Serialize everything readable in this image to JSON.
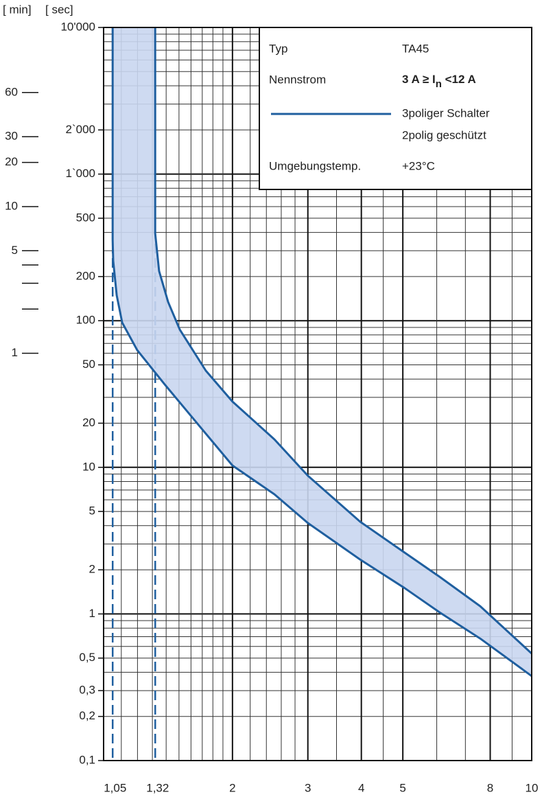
{
  "chart_data": {
    "type": "scatter",
    "xlog": true,
    "ylog": true,
    "y_axis_label": "[ sec]",
    "y2_axis_label": "[ min]",
    "xlim": [
      1,
      10
    ],
    "xticks": [
      {
        "value": 1.05,
        "label": "1,05"
      },
      {
        "value": 1.32,
        "label": "1,32"
      },
      2,
      3,
      4,
      5,
      8,
      10
    ],
    "x_minor_grid": [
      1.1,
      1.2,
      1.3,
      1.4,
      1.5,
      1.6,
      1.7,
      1.8,
      1.9,
      2.2,
      2.4,
      2.6,
      2.8,
      3.5,
      4.5,
      6,
      7,
      9
    ],
    "ylim": [
      0.1,
      10000
    ],
    "yticks": [
      {
        "value": 10000,
        "label": "10'000"
      },
      {
        "value": 2000,
        "label": "2`000"
      },
      {
        "value": 1000,
        "label": "1`000"
      },
      500,
      200,
      100,
      50,
      20,
      10,
      5,
      2,
      1,
      {
        "value": 0.5,
        "label": "0,5"
      },
      {
        "value": 0.3,
        "label": "0,3"
      },
      {
        "value": 0.2,
        "label": "0,2"
      },
      {
        "value": 0.1,
        "label": "0,1"
      }
    ],
    "y_major_grid": [
      1000,
      100,
      10,
      1
    ],
    "y_minor_grid": [
      0.2,
      0.3,
      0.4,
      0.5,
      0.6,
      0.7,
      0.8,
      0.9,
      2,
      3,
      4,
      5,
      6,
      7,
      8,
      9,
      20,
      30,
      40,
      50,
      60,
      70,
      80,
      90,
      200,
      300,
      400,
      500,
      600,
      700,
      800,
      900,
      2000,
      3000,
      4000,
      5000,
      6000,
      7000,
      8000,
      9000
    ],
    "y2lim": [
      0.0016667,
      166.667
    ],
    "y2ticks": [
      60,
      30,
      20,
      10,
      5,
      1
    ],
    "y2_minor_ticks": [
      4,
      3,
      2
    ],
    "color": "#1f5f9f",
    "band_color": "#c9d6ef",
    "series": [
      {
        "x": [
          1.05,
          1.05,
          1.053,
          1.073,
          1.105,
          1.198,
          1.389,
          1.67,
          2.0,
          2.506,
          3.0,
          3.974,
          5.05,
          6.08,
          7.58,
          10
        ],
        "values": [
          10000,
          354,
          256,
          149,
          97,
          63,
          36.8,
          19.3,
          10.3,
          6.55,
          4.17,
          2.35,
          1.5,
          1.03,
          0.68,
          0.377
        ]
      },
      {
        "x": [
          1.32,
          1.32,
          1.348,
          1.415,
          1.506,
          1.733,
          2.0,
          2.506,
          3.0,
          3.974,
          5.05,
          6.08,
          7.58,
          10
        ],
        "values": [
          10000,
          394,
          218,
          134,
          87,
          45.6,
          28.1,
          15.5,
          8.77,
          4.26,
          2.62,
          1.8,
          1.13,
          0.537
        ]
      }
    ],
    "legend": {
      "typ_label": "Typ",
      "typ_value": "TA45",
      "nennstrom_label": "Nennstrom",
      "nennstrom_value": [
        "3 A ≥ I",
        "n",
        " <12 A"
      ],
      "line_label": [
        "3poliger Schalter",
        "2polig geschützt"
      ],
      "temp_label": "Umgebungstemp.",
      "temp_value": "+23°C"
    }
  }
}
